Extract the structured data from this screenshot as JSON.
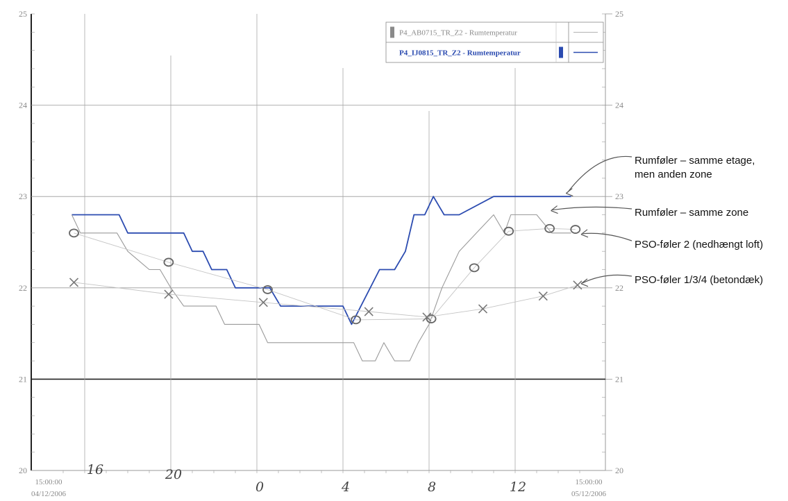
{
  "chart_data": {
    "type": "line",
    "xlabel": "",
    "ylabel": "",
    "ylim": [
      20,
      25
    ],
    "yticks": [
      "20",
      "21",
      "22",
      "23",
      "24",
      "25"
    ],
    "xlim": [
      15,
      39
    ],
    "x_start_label": {
      "time": "15:00:00",
      "date": "04/12/2006"
    },
    "x_end_label": {
      "time": "15:00:00",
      "date": "05/12/2006"
    },
    "x_hand_labels": [
      {
        "x": 16,
        "text": "16"
      },
      {
        "x": 20,
        "text": "20"
      },
      {
        "x": 24,
        "text": "0"
      },
      {
        "x": 28,
        "text": "4"
      },
      {
        "x": 32,
        "text": "8"
      },
      {
        "x": 36,
        "text": "12"
      }
    ],
    "legend": {
      "placement": "top-right",
      "entries": [
        {
          "label": "P4_AB0715_TR_Z2 - Rumtemperatur",
          "color": "#9a9a9a"
        },
        {
          "label": "P4_IJ0815_TR_Z2 - Rumtemperatur",
          "color": "#2b4bb0"
        }
      ]
    },
    "series": [
      {
        "name": "P4_IJ0815_TR_Z2 - Rumtemperatur",
        "color": "#2b4bb0",
        "points": [
          [
            15.4,
            22.8
          ],
          [
            17.6,
            22.8
          ],
          [
            18.0,
            22.6
          ],
          [
            20.6,
            22.6
          ],
          [
            21.0,
            22.4
          ],
          [
            21.5,
            22.4
          ],
          [
            21.9,
            22.2
          ],
          [
            22.6,
            22.2
          ],
          [
            23.0,
            22.0
          ],
          [
            24.6,
            22.0
          ],
          [
            25.1,
            21.8
          ],
          [
            28.0,
            21.8
          ],
          [
            28.4,
            21.6
          ],
          [
            29.7,
            22.2
          ],
          [
            30.4,
            22.2
          ],
          [
            30.9,
            22.4
          ],
          [
            31.3,
            22.8
          ],
          [
            31.8,
            22.8
          ],
          [
            32.2,
            23.0
          ],
          [
            32.7,
            22.8
          ],
          [
            33.4,
            22.8
          ],
          [
            35.0,
            23.0
          ],
          [
            38.6,
            23.0
          ]
        ]
      },
      {
        "name": "P4_AB0715_TR_Z2 - Rumtemperatur",
        "color": "#9a9a9a",
        "points": [
          [
            15.4,
            22.8
          ],
          [
            15.8,
            22.6
          ],
          [
            17.5,
            22.6
          ],
          [
            18.0,
            22.4
          ],
          [
            19.0,
            22.2
          ],
          [
            19.5,
            22.2
          ],
          [
            20.0,
            22.0
          ],
          [
            20.6,
            21.8
          ],
          [
            22.1,
            21.8
          ],
          [
            22.5,
            21.6
          ],
          [
            24.1,
            21.6
          ],
          [
            24.5,
            21.4
          ],
          [
            28.5,
            21.4
          ],
          [
            28.9,
            21.2
          ],
          [
            29.5,
            21.2
          ],
          [
            29.9,
            21.4
          ],
          [
            30.4,
            21.2
          ],
          [
            31.1,
            21.2
          ],
          [
            31.5,
            21.4
          ],
          [
            32.0,
            21.6
          ],
          [
            32.6,
            22.0
          ],
          [
            33.4,
            22.4
          ],
          [
            34.2,
            22.6
          ],
          [
            35.0,
            22.8
          ],
          [
            35.5,
            22.6
          ],
          [
            35.8,
            22.8
          ],
          [
            37.0,
            22.8
          ],
          [
            37.7,
            22.6
          ],
          [
            38.6,
            22.6
          ]
        ]
      }
    ],
    "hand_marks": [
      {
        "name": "PSO-føler 2",
        "symbol": "o",
        "points": [
          [
            15.5,
            22.6
          ],
          [
            19.9,
            22.28
          ],
          [
            24.5,
            21.98
          ],
          [
            28.6,
            21.65
          ],
          [
            32.1,
            21.66
          ],
          [
            34.1,
            22.22
          ],
          [
            35.7,
            22.62
          ],
          [
            37.6,
            22.65
          ],
          [
            38.8,
            22.64
          ]
        ]
      },
      {
        "name": "PSO-føler 1/3/4",
        "symbol": "x",
        "points": [
          [
            15.5,
            22.06
          ],
          [
            19.9,
            21.93
          ],
          [
            24.3,
            21.84
          ],
          [
            29.2,
            21.74
          ],
          [
            31.9,
            21.68
          ],
          [
            34.5,
            21.77
          ],
          [
            37.3,
            21.91
          ],
          [
            38.9,
            22.03
          ]
        ]
      }
    ],
    "annotations": [
      {
        "text_lines": [
          "Rumføler – samme etage,",
          "men anden zone"
        ],
        "target": [
          38.3,
          23.02
        ]
      },
      {
        "text_lines": [
          "Rumføler – samme zone"
        ],
        "target": [
          37.6,
          22.83
        ]
      },
      {
        "text_lines": [
          "PSO-føler 2 (nedhængt loft)"
        ],
        "target": [
          39.0,
          22.57
        ]
      },
      {
        "text_lines": [
          "PSO-føler 1/3/4 (betondæk)"
        ],
        "target": [
          39.0,
          22.03
        ]
      }
    ]
  }
}
